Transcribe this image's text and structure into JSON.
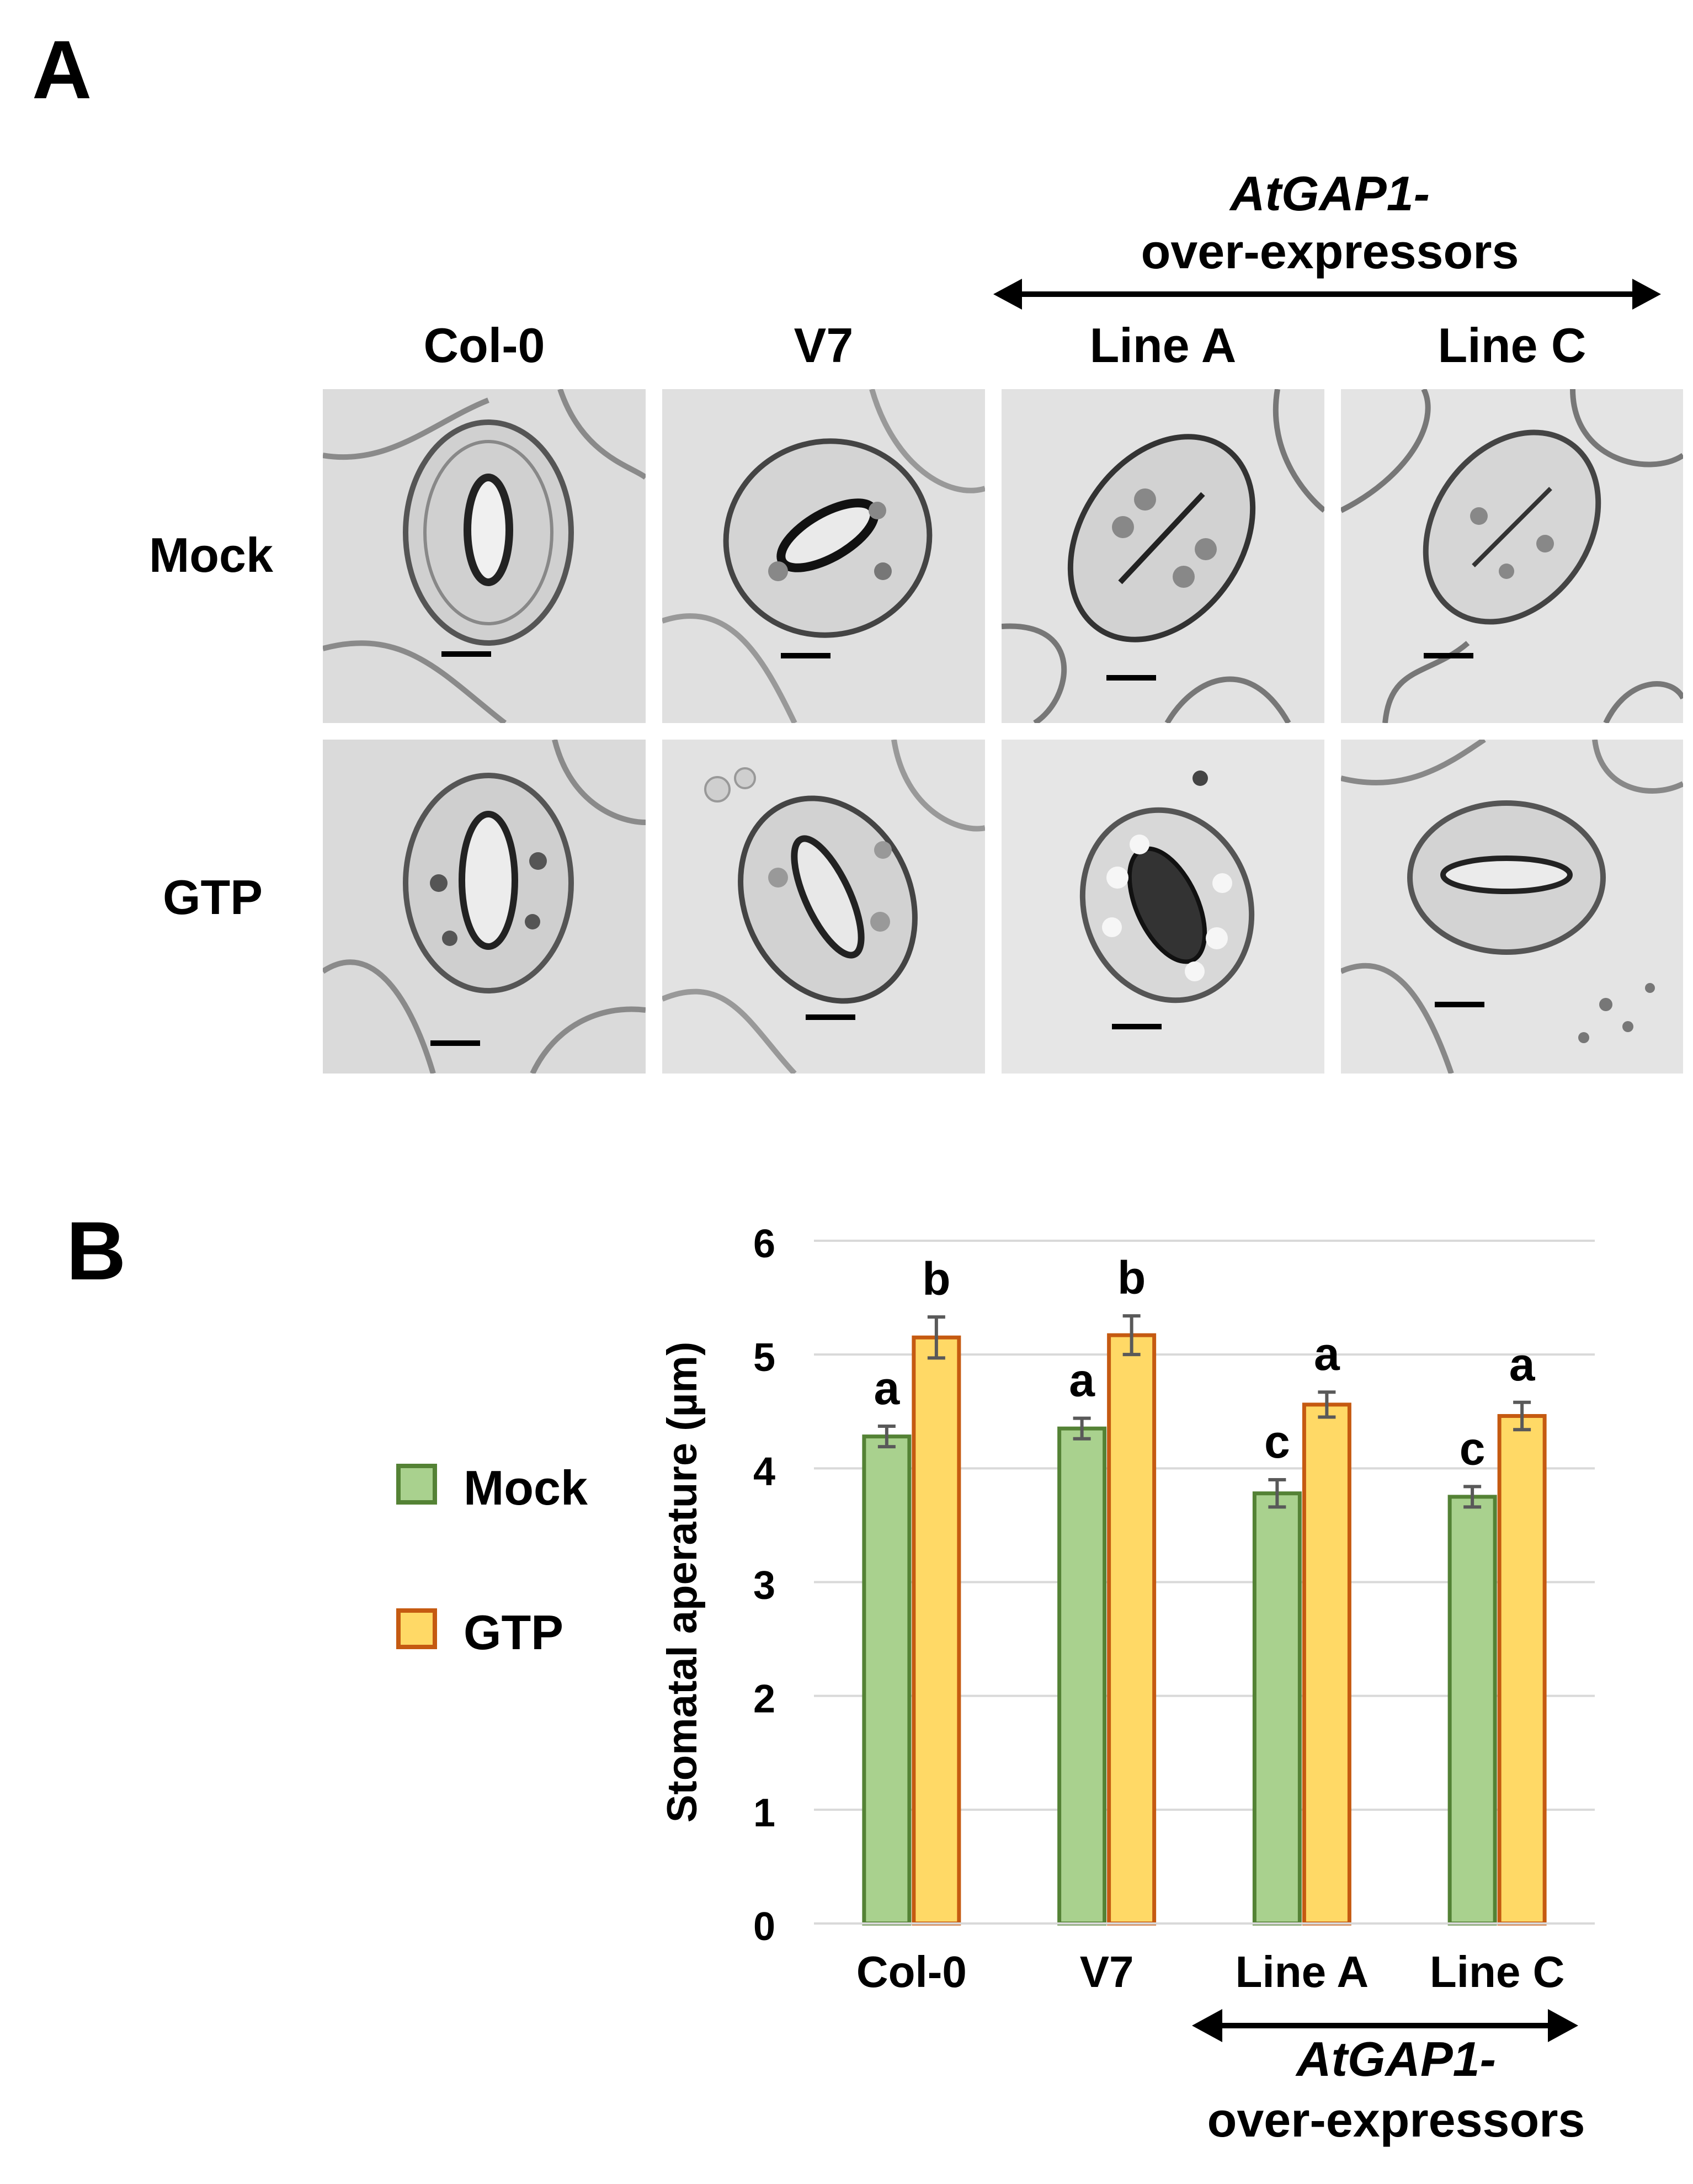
{
  "panel_a": {
    "label": "A",
    "group_label_line1": "AtGAP1-",
    "group_label_line2": "over-expressors",
    "columns": [
      "Col-0",
      "V7",
      "Line A",
      "Line C"
    ],
    "rows": [
      "Mock",
      "GTP"
    ]
  },
  "panel_b": {
    "label": "B",
    "legend": [
      {
        "name": "Mock",
        "fill": "#a9d18e",
        "stroke": "#548235"
      },
      {
        "name": "GTP",
        "fill": "#ffd966",
        "stroke": "#c55a11"
      }
    ],
    "group_label_line1": "AtGAP1-",
    "group_label_line2": "over-expressors"
  },
  "chart_data": {
    "type": "bar",
    "categories": [
      "Col-0",
      "V7",
      "Line A",
      "Line C"
    ],
    "series": [
      {
        "name": "Mock",
        "values": [
          4.28,
          4.35,
          3.78,
          3.75
        ],
        "errors": [
          0.09,
          0.09,
          0.12,
          0.09
        ],
        "letters": [
          "a",
          "a",
          "c",
          "c"
        ],
        "color": "#a9d18e",
        "edge": "#548235"
      },
      {
        "name": "GTP",
        "values": [
          5.15,
          5.17,
          4.56,
          4.46
        ],
        "errors": [
          0.18,
          0.17,
          0.11,
          0.12
        ],
        "letters": [
          "b",
          "b",
          "a",
          "a"
        ],
        "color": "#ffd966",
        "edge": "#c55a11"
      }
    ],
    "ylabel": "Stomatal aperature (µm)",
    "xlabel": "",
    "ylim": [
      0,
      6
    ],
    "yticks": [
      0,
      1,
      2,
      3,
      4,
      5,
      6
    ],
    "grid": true,
    "legend_position": "left"
  }
}
